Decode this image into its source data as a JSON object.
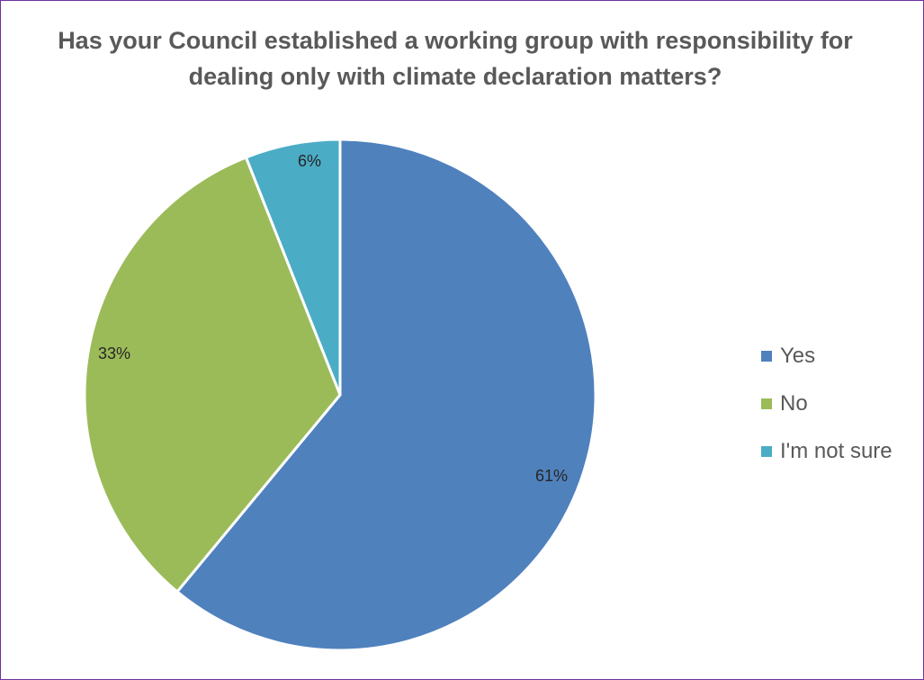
{
  "chart_data": {
    "type": "pie",
    "title": [
      "Has your Council established a working group with responsibility for",
      "dealing only with climate declaration matters?"
    ],
    "slices": [
      {
        "label": "Yes",
        "value": 61,
        "data_label": "61%",
        "color": "#4f81bd"
      },
      {
        "label": "No",
        "value": 33,
        "data_label": "33%",
        "color": "#9bbb59"
      },
      {
        "label": "I'm not sure",
        "value": 6,
        "data_label": "6%",
        "color": "#4bacc6"
      }
    ],
    "legend_position": "right",
    "start_angle": "12 o'clock",
    "direction": "clockwise"
  },
  "frame_border_color": "#7030a0"
}
